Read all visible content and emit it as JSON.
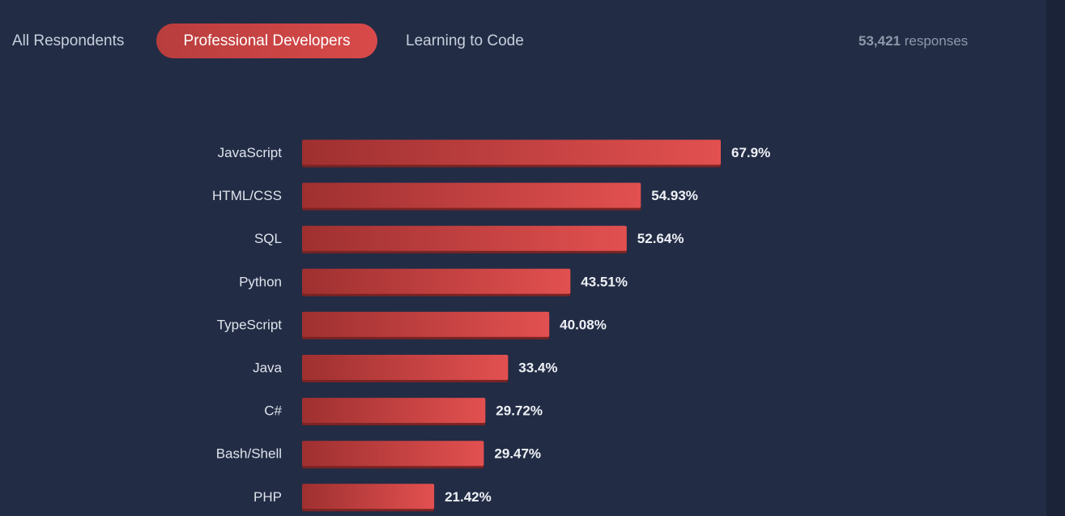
{
  "tabs": [
    {
      "label": "All Respondents",
      "active": false
    },
    {
      "label": "Professional Developers",
      "active": true
    },
    {
      "label": "Learning to Code",
      "active": false
    }
  ],
  "responses": {
    "count": "53,421",
    "label": "responses"
  },
  "colors": {
    "background": "#222c45",
    "bar_start": "#9f3030",
    "bar_end": "#e25050",
    "active_tab": "#d14545"
  },
  "chart_data": {
    "type": "bar",
    "orientation": "horizontal",
    "categories": [
      "JavaScript",
      "HTML/CSS",
      "SQL",
      "Python",
      "TypeScript",
      "Java",
      "C#",
      "Bash/Shell",
      "PHP"
    ],
    "values": [
      67.9,
      54.93,
      52.64,
      43.51,
      40.08,
      33.4,
      29.72,
      29.47,
      21.42
    ],
    "value_labels": [
      "67.9%",
      "54.93%",
      "52.64%",
      "43.51%",
      "40.08%",
      "33.4%",
      "29.72%",
      "29.47%",
      "21.42%"
    ],
    "unit": "%",
    "title": "",
    "xlabel": "",
    "ylabel": "",
    "grid": false,
    "legend": "none"
  }
}
